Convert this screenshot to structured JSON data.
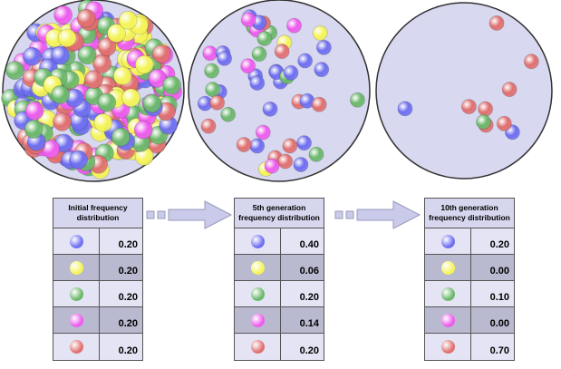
{
  "panels": [
    {
      "header": "Initial frequency distribution",
      "rows": [
        "0.20",
        "0.20",
        "0.20",
        "0.20",
        "0.20"
      ]
    },
    {
      "header": "5th generation frequency distribution",
      "rows": [
        "0.40",
        "0.06",
        "0.20",
        "0.14",
        "0.20"
      ]
    },
    {
      "header": "10th generation frequency distribution",
      "rows": [
        "0.20",
        "0.00",
        "0.10",
        "0.00",
        "0.70"
      ]
    }
  ]
}
